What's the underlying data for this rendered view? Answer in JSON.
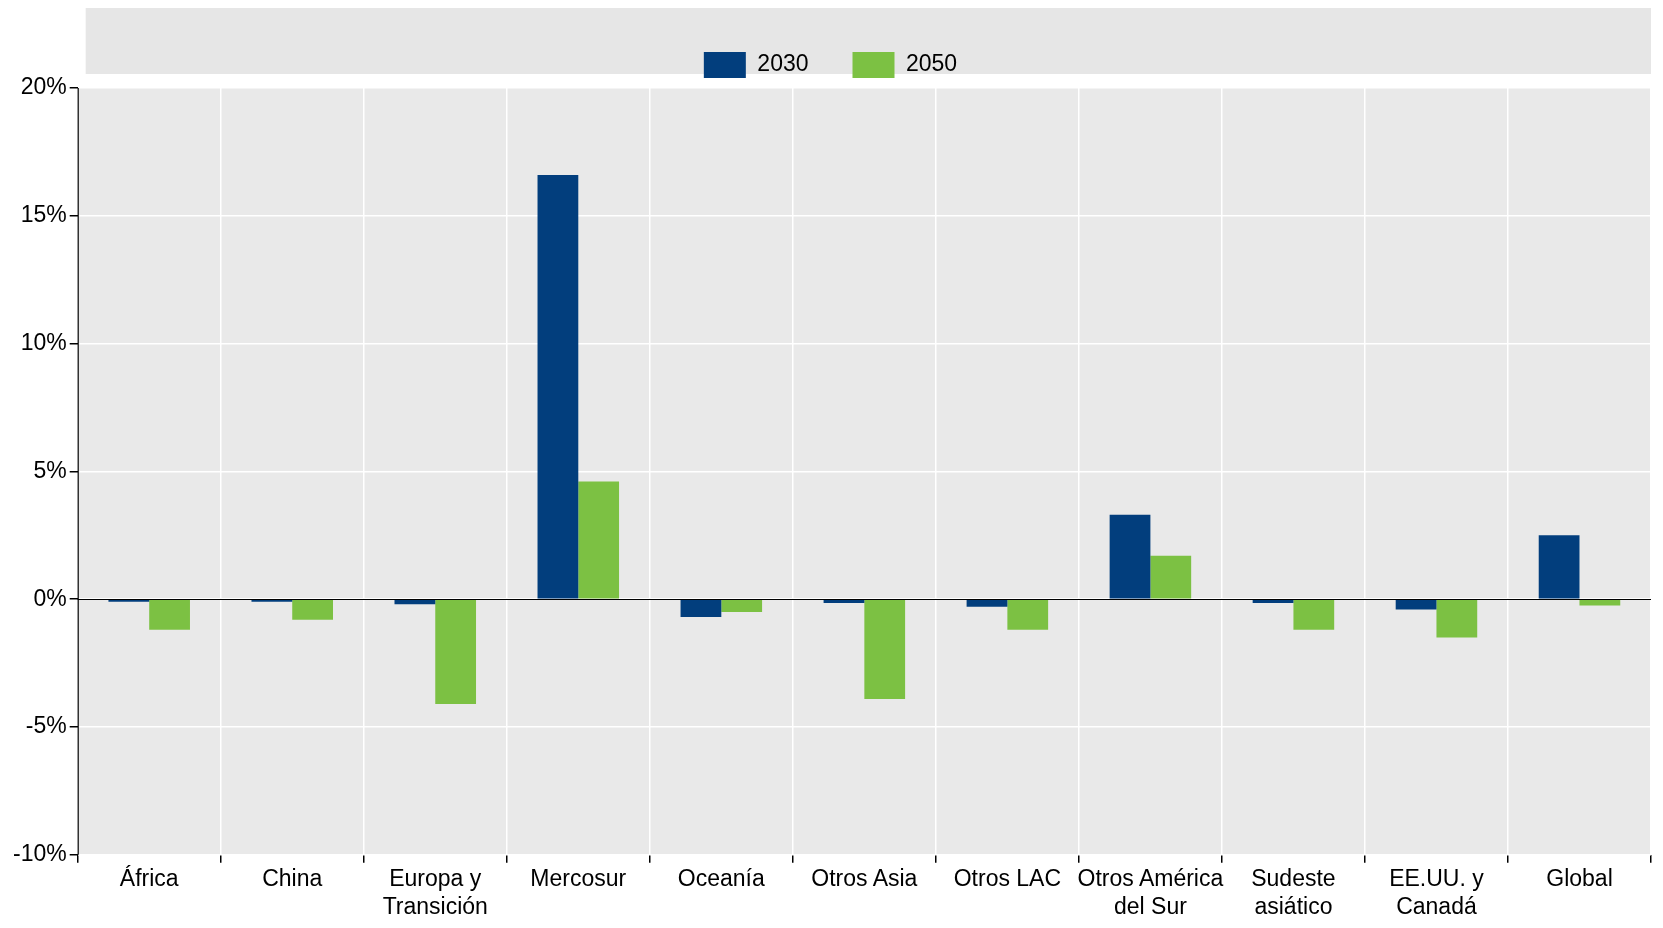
{
  "chart_data": {
    "type": "bar",
    "categories": [
      "África",
      "China",
      "Europa y Transición",
      "Mercosur",
      "Oceanía",
      "Otros Asia",
      "Otros LAC",
      "Otros América del Sur",
      "Sudeste asiático",
      "EE.UU. y Canadá",
      "Global"
    ],
    "series": [
      {
        "name": "2030",
        "color": "#023e7d",
        "values": [
          -0.1,
          -0.1,
          -0.2,
          16.6,
          -0.7,
          -0.15,
          -0.3,
          3.3,
          -0.15,
          -0.4,
          2.5
        ]
      },
      {
        "name": "2050",
        "color": "#7cc143",
        "values": [
          -1.2,
          -0.8,
          -4.1,
          4.6,
          -0.5,
          -3.9,
          -1.2,
          1.7,
          -1.2,
          -1.5,
          -0.25
        ]
      }
    ],
    "ylim": [
      -10,
      20
    ],
    "yticks": [
      {
        "value": -10,
        "label": "-10%"
      },
      {
        "value": -5,
        "label": "-5%"
      },
      {
        "value": 0,
        "label": "0%"
      },
      {
        "value": 5,
        "label": "5%"
      },
      {
        "value": 10,
        "label": "10%"
      },
      {
        "value": 15,
        "label": "15%"
      },
      {
        "value": 20,
        "label": "20%"
      }
    ],
    "grid": true,
    "legend": "top"
  }
}
